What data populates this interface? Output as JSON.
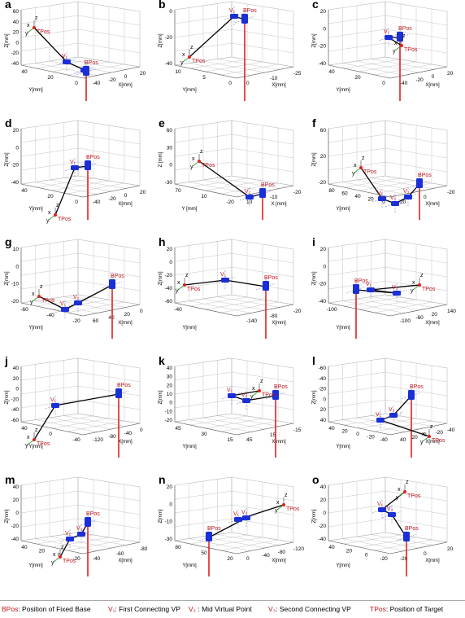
{
  "panels": [
    {
      "letter": "a",
      "x_ticks": [
        "-40",
        "-20",
        "0",
        "20"
      ],
      "y_ticks": [
        "40",
        "20",
        "0"
      ],
      "z_ticks": [
        "60",
        "40",
        "20",
        "0",
        "-20",
        "-40"
      ],
      "xlabel": "X[mm]",
      "ylabel": "Y[mm]",
      "zlabel": "Z[mm]",
      "tags": [
        "TPos",
        "BPos",
        "V₁",
        "y",
        "x",
        "z"
      ]
    },
    {
      "letter": "b",
      "x_ticks": [
        "0",
        "-10",
        "-25"
      ],
      "y_ticks": [
        "10",
        "5",
        "0"
      ],
      "z_ticks": [
        "0",
        "-20",
        "-40"
      ],
      "xlabel": "X[mm]",
      "ylabel": "Y[mm]",
      "zlabel": "Z[mm]",
      "tags": [
        "TPos",
        "BPos",
        "V₁",
        "y",
        "x",
        "z"
      ]
    },
    {
      "letter": "c",
      "x_ticks": [
        "-40",
        "-20",
        "0",
        "20"
      ],
      "y_ticks": [
        "40",
        "20",
        "0"
      ],
      "z_ticks": [
        "20",
        "0",
        "-20",
        "-40"
      ],
      "xlabel": "X[mm]",
      "ylabel": "Y[mm]",
      "zlabel": "Z[mm]",
      "tags": [
        "TPos",
        "BPos",
        "V₁",
        "y",
        "x",
        "z"
      ]
    },
    {
      "letter": "d",
      "x_ticks": [
        "-40",
        "-20",
        "0",
        "20"
      ],
      "y_ticks": [
        "40",
        "20",
        "0"
      ],
      "z_ticks": [
        "20",
        "0",
        "-20",
        "-40"
      ],
      "xlabel": "X[mm]",
      "ylabel": "Y[mm]",
      "zlabel": "Z[mm]",
      "tags": [
        "TPos",
        "BPos",
        "V₁",
        "y",
        "x",
        "z"
      ]
    },
    {
      "letter": "e",
      "x_ticks": [
        "10",
        "-10",
        "-20"
      ],
      "y_ticks": [
        "70",
        "10",
        "-20"
      ],
      "z_ticks": [
        "60",
        "30",
        "0",
        "-30"
      ],
      "xlabel": "X [mm]",
      "ylabel": "Y [mm]",
      "zlabel": "Z [mm]",
      "tags": [
        "TPos",
        "BPos",
        "V₁",
        "y",
        "x",
        "z"
      ]
    },
    {
      "letter": "f",
      "x_ticks": [
        "20",
        "0",
        "-20"
      ],
      "y_ticks": [
        "80",
        "60",
        "40",
        "20",
        "0"
      ],
      "z_ticks": [
        "60",
        "20",
        "-20"
      ],
      "xlabel": "X[mm]",
      "ylabel": "Y[mm]",
      "zlabel": "Z[mm]",
      "tags": [
        "TPos",
        "BPos",
        "V₁",
        "V₂",
        "V₃",
        "y",
        "x",
        "z"
      ]
    },
    {
      "letter": "g",
      "x_ticks": [
        "60",
        "40",
        "20",
        "0"
      ],
      "y_ticks": [
        "-60",
        "-40",
        "-20"
      ],
      "z_ticks": [
        "10",
        "0",
        "-10",
        "-20"
      ],
      "xlabel": "X[mm]",
      "ylabel": "Y[mm]",
      "zlabel": "Z[mm]",
      "tags": [
        "TPos",
        "BPos",
        "V₁",
        "V₂",
        "V₃",
        "y",
        "x",
        "z"
      ]
    },
    {
      "letter": "h",
      "x_ticks": [
        "-140",
        "-80",
        "-20"
      ],
      "y_ticks": [
        "-40"
      ],
      "z_ticks": [
        "20",
        "0",
        "-20",
        "-40",
        "-60"
      ],
      "xlabel": "X[mm]",
      "ylabel": "Y[mm]",
      "zlabel": "Z[mm]",
      "tags": [
        "TPos",
        "BPos",
        "V₁",
        "V₃",
        "y",
        "x",
        "z"
      ]
    },
    {
      "letter": "i",
      "x_ticks": [
        "-100",
        "-60",
        "20",
        "140"
      ],
      "y_ticks": [
        "-100"
      ],
      "z_ticks": [
        "20",
        "0",
        "-20",
        "-40"
      ],
      "xlabel": "X[mm]",
      "ylabel": "Y[mm]",
      "zlabel": "Z[mm]",
      "tags": [
        "TPos",
        "BPos",
        "V₁",
        "V₃",
        "y",
        "x",
        "z"
      ]
    },
    {
      "letter": "j",
      "x_ticks": [
        "-120",
        "-80",
        "-40",
        "0"
      ],
      "y_ticks": [
        "40",
        "0",
        "-40"
      ],
      "z_ticks": [
        "40",
        "20",
        "0",
        "-20",
        "-40",
        "-60"
      ],
      "xlabel": "X[mm]",
      "ylabel": "Y[mm]",
      "zlabel": "Z[mm]",
      "tags": [
        "TPos",
        "BPos",
        "V₁",
        "V₃",
        "y",
        "x",
        "z"
      ]
    },
    {
      "letter": "k",
      "x_ticks": [
        "45",
        "15",
        "-15"
      ],
      "y_ticks": [
        "45",
        "30",
        "15"
      ],
      "z_ticks": [
        "40",
        "30",
        "20",
        "10",
        "0",
        "-10",
        "-20"
      ],
      "xlabel": "X[mm]",
      "ylabel": "Y[mm]",
      "zlabel": "Z[mm]",
      "tags": [
        "TPos",
        "BPos",
        "V₁",
        "V₃",
        "y",
        "x",
        "z"
      ]
    },
    {
      "letter": "l",
      "x_ticks": [
        "40",
        "20",
        "0",
        "-20",
        "-40"
      ],
      "y_ticks": [
        "40",
        "20",
        "0",
        "-20",
        "-40"
      ],
      "z_ticks": [
        "-60",
        "-40",
        "-20",
        "0",
        "20",
        "40"
      ],
      "xlabel": "X[mm]",
      "ylabel": "Y[mm]",
      "zlabel": "Z[mm]",
      "tags": [
        "TPos",
        "BPos",
        "V₁",
        "V₃",
        "y",
        "x",
        "z"
      ]
    },
    {
      "letter": "m",
      "x_ticks": [
        "-40",
        "-60",
        "-80"
      ],
      "y_ticks": [
        "40",
        "20",
        "0",
        "-20"
      ],
      "z_ticks": [
        "40",
        "20",
        "0",
        "-20",
        "-40"
      ],
      "xlabel": "X[mm]",
      "ylabel": "Y[mm]",
      "zlabel": "Z[mm]",
      "tags": [
        "TPos",
        "BPos",
        "V₁",
        "V₃",
        "y",
        "x",
        "z"
      ]
    },
    {
      "letter": "n",
      "x_ticks": [
        "0",
        "-40",
        "-80",
        "-120"
      ],
      "y_ticks": [
        "80",
        "50",
        "20"
      ],
      "z_ticks": [
        "20",
        "0",
        "-10",
        "-30"
      ],
      "xlabel": "X[mm]",
      "ylabel": "Y[mm]",
      "zlabel": "Z[mm]",
      "tags": [
        "TPos",
        "BPos",
        "V₁",
        "V₃",
        "y",
        "x",
        "z"
      ]
    },
    {
      "letter": "o",
      "x_ticks": [
        "-20",
        "0",
        "20"
      ],
      "y_ticks": [
        "40",
        "20",
        "0",
        "-20"
      ],
      "z_ticks": [
        "40",
        "20",
        "0",
        "-20",
        "-40"
      ],
      "xlabel": "X[mm]",
      "ylabel": "Y[mm]",
      "zlabel": "Z[mm]",
      "tags": [
        "TPos",
        "BPos",
        "V₁",
        "V₃",
        "y",
        "x",
        "z"
      ]
    }
  ],
  "legend": {
    "bpos_code": "BPos",
    "bpos_text": ": Position of Fixed Base",
    "v1_code": "V₁",
    "v1_text": ": First Connecting VP",
    "v2_code": "V₂",
    "v2_text": " : Mid Virtual Point",
    "v3_code": "V₃",
    "v3_text": ": Second Connecting VP",
    "tpos_code": "TPos",
    "tpos_text": ": Position of Target"
  },
  "colors": {
    "robot": "#1a2fd6",
    "base_line": "#e02020",
    "label": "#c0141a",
    "grid": "#b8b8b8",
    "target_axis": "#2aa02a"
  }
}
